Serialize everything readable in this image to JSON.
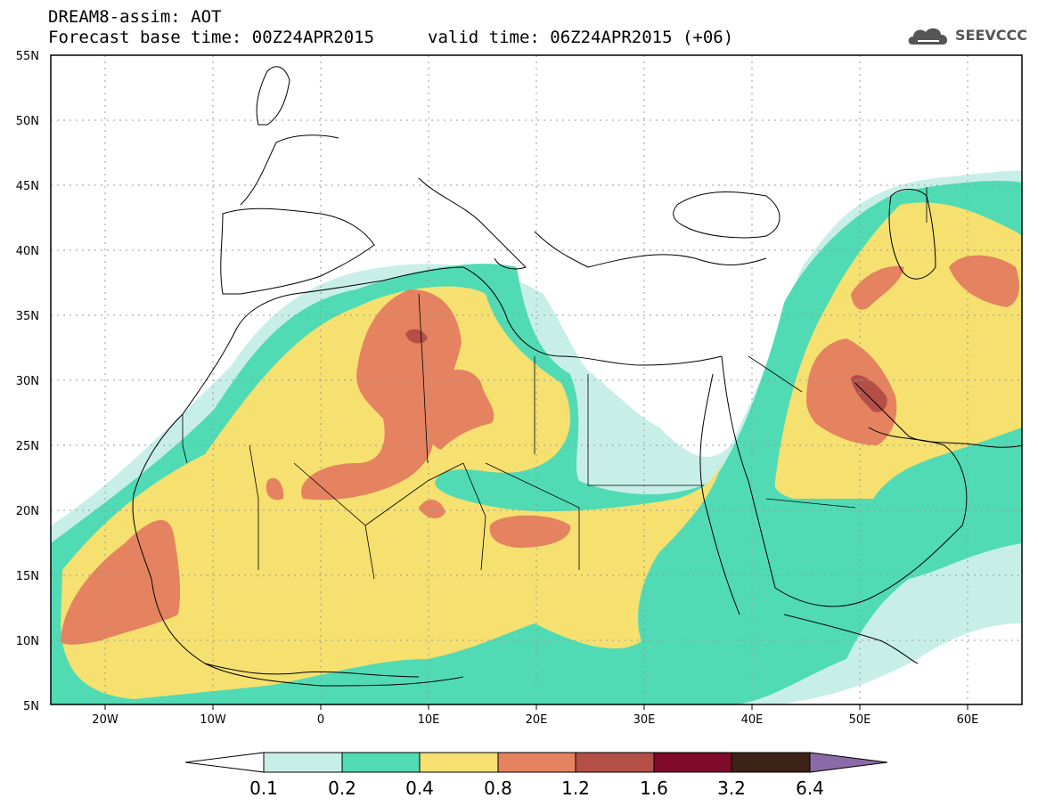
{
  "header": {
    "title": "DREAM8-assim: AOT",
    "base_time": "Forecast base time: 00Z24APR2015",
    "valid_time": "valid time: 06Z24APR2015 (+06)"
  },
  "logo": {
    "text": "SEEVCCC",
    "icon": "cloud-icon"
  },
  "map": {
    "lat_labels": [
      "55N",
      "50N",
      "45N",
      "40N",
      "35N",
      "30N",
      "25N",
      "20N",
      "15N",
      "10N",
      "5N"
    ],
    "lon_labels": [
      "20W",
      "10W",
      "0",
      "10E",
      "20E",
      "30E",
      "40E",
      "50E",
      "60E"
    ],
    "lat_range": [
      5,
      55
    ],
    "lon_range": [
      -25,
      65
    ],
    "grid": "dotted"
  },
  "legend": {
    "thresholds": [
      "0.1",
      "0.2",
      "0.4",
      "0.8",
      "1.2",
      "1.6",
      "3.2",
      "6.4"
    ],
    "colors": [
      "#c7efe8",
      "#50dbb4",
      "#f5e070",
      "#e5825f",
      "#b34f47",
      "#7f0a2b",
      "#3d2218",
      "#8b6aa8"
    ]
  },
  "colors": {
    "bg": "#ffffff",
    "level_0_1": "#c7efe8",
    "level_0_2": "#50dbb4",
    "level_0_4": "#f5e070",
    "level_0_8": "#e5825f",
    "level_1_2": "#b34f47"
  }
}
